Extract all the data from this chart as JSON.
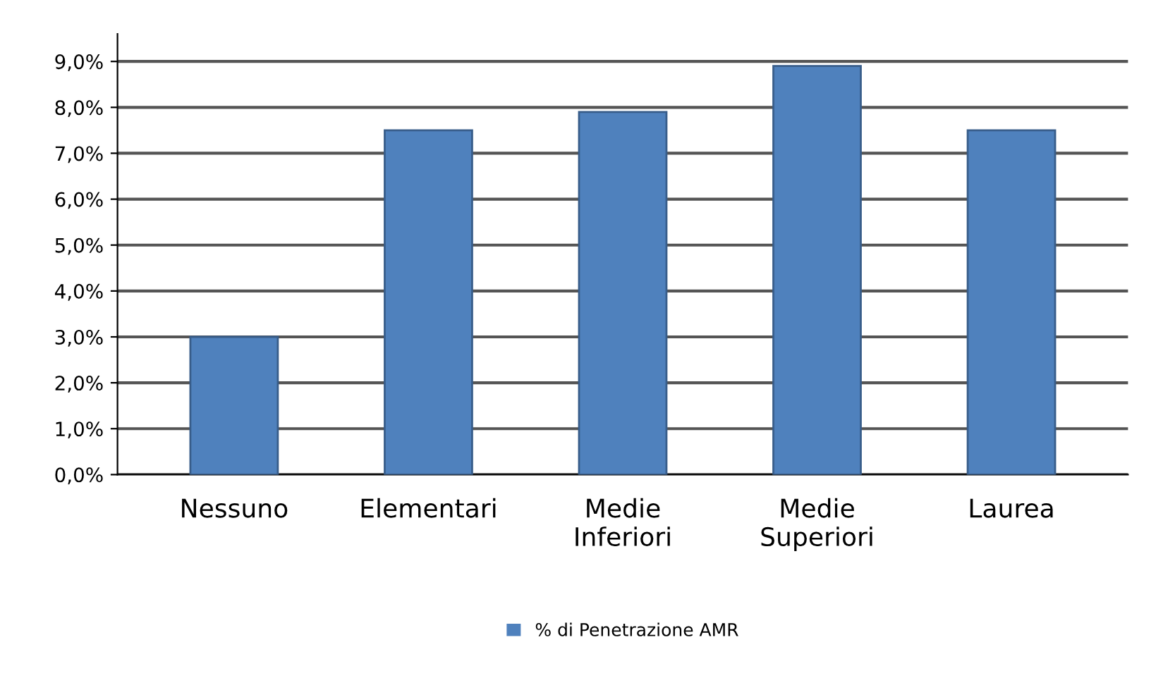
{
  "chart_data": {
    "type": "bar",
    "categories": [
      "Nessuno",
      "Elementari",
      "Medie\nInferiori",
      "Medie\nSuperiori",
      "Laurea"
    ],
    "series": [
      {
        "name": "% di Penetrazione AMR",
        "color": "#4f81bd",
        "values": [
          3.0,
          7.5,
          7.9,
          8.9,
          7.5
        ]
      }
    ],
    "ylim": [
      0,
      9.6
    ],
    "yticks": [
      {
        "value": 0,
        "label": "0,0%"
      },
      {
        "value": 1,
        "label": "1,0%"
      },
      {
        "value": 2,
        "label": "2,0%"
      },
      {
        "value": 3,
        "label": "3,0%"
      },
      {
        "value": 4,
        "label": "4,0%"
      },
      {
        "value": 5,
        "label": "5,0%"
      },
      {
        "value": 6,
        "label": "6,0%"
      },
      {
        "value": 7,
        "label": "7,0%"
      },
      {
        "value": 8,
        "label": "8,0%"
      },
      {
        "value": 9,
        "label": "9,0%"
      }
    ],
    "grid": "y",
    "legend": "bottom"
  }
}
